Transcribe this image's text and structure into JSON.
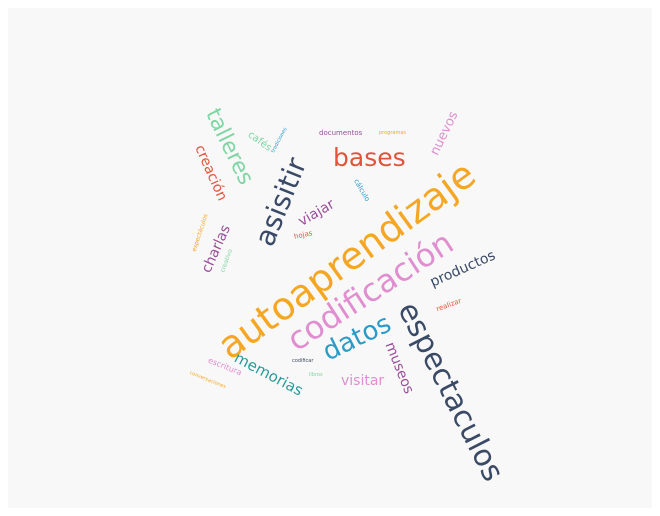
{
  "colors": {
    "orange": "#f5a623",
    "pink": "#e08ed0",
    "blue": "#2a9bc9",
    "navy": "#3a4a66",
    "red": "#e0553a",
    "green": "#7fd6a3",
    "purple": "#9a4f9a",
    "teal": "#2a9a9a"
  },
  "words": {
    "autoaprendizaje": "autoaprendizaje",
    "codificacion": "codificación",
    "espectaculos_big": "espectaculos",
    "asisitir": "asisitir",
    "bases": "bases",
    "talleres": "talleres",
    "datos": "datos",
    "memorias": "memorias",
    "productos": "productos",
    "creacion": "creación",
    "museos": "museos",
    "visitar": "visitar",
    "nuevos": "nuevos",
    "viajar": "viajar",
    "charlas": "charlas",
    "cafes": "cafés",
    "documentos": "documentos",
    "programas": "programas",
    "tradiciones": "tradiciones",
    "calculo": "cálculo",
    "hojas": "hojas",
    "espectaculos_small": "espectáculos",
    "creativo": "creativo",
    "realizar": "realizar",
    "escritura": "escritura",
    "codificar": "codificar",
    "libros": "libros",
    "conversaciones": "conversaciones"
  }
}
